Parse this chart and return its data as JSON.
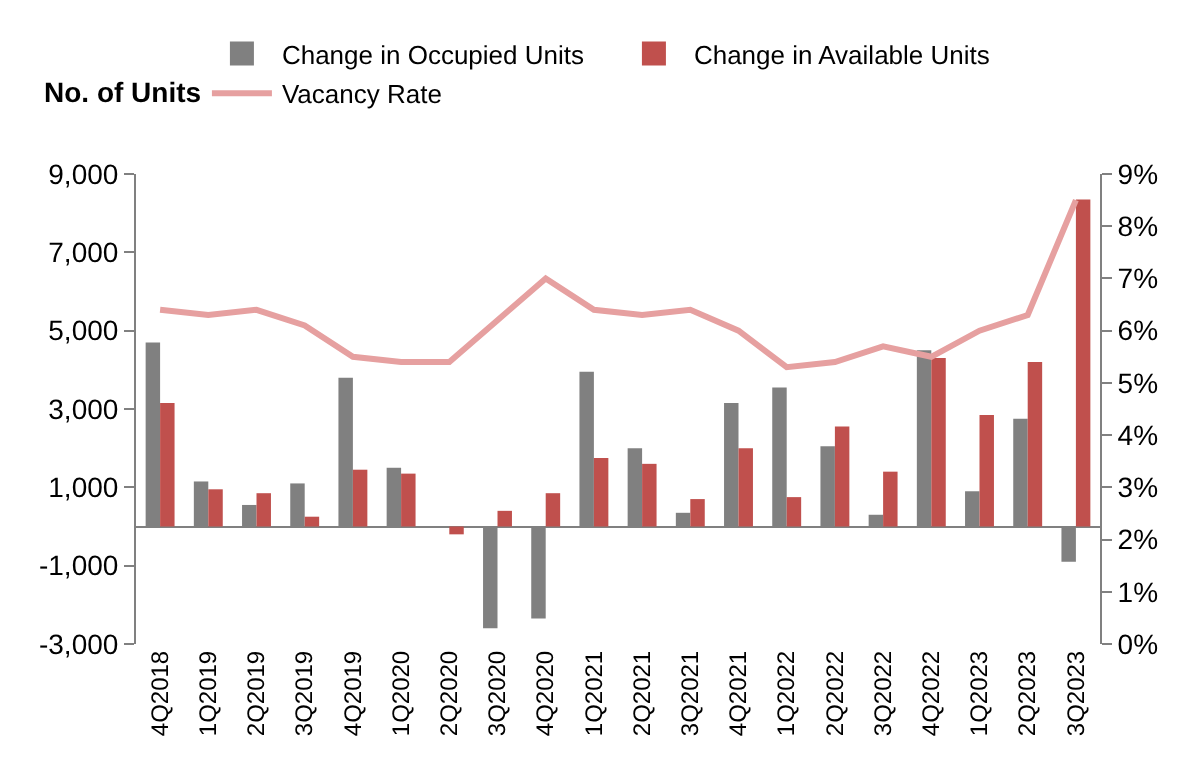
{
  "chart_data": {
    "type": "bar",
    "ylabel": "No. of Units",
    "categories": [
      "4Q2018",
      "1Q2019",
      "2Q2019",
      "3Q2019",
      "4Q2019",
      "1Q2020",
      "2Q2020",
      "3Q2020",
      "4Q2020",
      "1Q2021",
      "2Q2021",
      "3Q2021",
      "4Q2021",
      "1Q2022",
      "2Q2022",
      "3Q2022",
      "4Q2022",
      "1Q2023",
      "2Q2023",
      "3Q2023"
    ],
    "series": [
      {
        "name": "Change in Occupied Units",
        "color": "#808080",
        "values": [
          4700,
          1150,
          550,
          1100,
          3800,
          1500,
          null,
          -2600,
          -2350,
          3950,
          2000,
          350,
          3150,
          3550,
          2050,
          300,
          4500,
          900,
          2750,
          -900
        ]
      },
      {
        "name": "Change in Available Units",
        "color": "#c0504d",
        "values": [
          3150,
          950,
          850,
          250,
          1450,
          1350,
          -200,
          400,
          850,
          1750,
          1600,
          700,
          2000,
          750,
          2550,
          1400,
          4300,
          2850,
          4200,
          8350
        ]
      },
      {
        "name": "Vacancy Rate",
        "type": "line",
        "axis": "y2",
        "color": "#e6a0a0",
        "values": [
          6.4,
          6.3,
          6.4,
          6.1,
          5.5,
          5.4,
          5.4,
          6.2,
          7.0,
          6.4,
          6.3,
          6.4,
          6.0,
          5.3,
          5.4,
          5.7,
          5.5,
          6.0,
          6.3,
          8.5
        ]
      }
    ],
    "ylim": [
      -3000,
      9000
    ],
    "yticks": [
      {
        "value": -3000,
        "label": "-3,000"
      },
      {
        "value": -1000,
        "label": "-1,000"
      },
      {
        "value": 1000,
        "label": "1,000"
      },
      {
        "value": 3000,
        "label": "3,000"
      },
      {
        "value": 5000,
        "label": "5,000"
      },
      {
        "value": 7000,
        "label": "7,000"
      },
      {
        "value": 9000,
        "label": "9,000"
      }
    ],
    "y2lim": [
      0,
      9
    ],
    "y2ticks": [
      {
        "value": 0,
        "label": "0%"
      },
      {
        "value": 1,
        "label": "1%"
      },
      {
        "value": 2,
        "label": "2%"
      },
      {
        "value": 3,
        "label": "3%"
      },
      {
        "value": 4,
        "label": "4%"
      },
      {
        "value": 5,
        "label": "5%"
      },
      {
        "value": 6,
        "label": "6%"
      },
      {
        "value": 7,
        "label": "7%"
      },
      {
        "value": 8,
        "label": "8%"
      },
      {
        "value": 9,
        "label": "9%"
      }
    ],
    "grid": false,
    "legend": "top",
    "marker": "none",
    "line_style": "solid"
  }
}
